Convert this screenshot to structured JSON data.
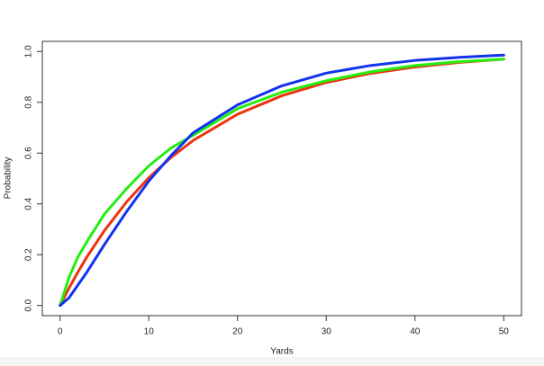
{
  "chart_data": {
    "type": "line",
    "x_label": "Yards",
    "y_label": "Probability",
    "x": [
      0,
      1,
      2,
      3,
      5,
      7.5,
      10,
      12.5,
      15,
      20,
      25,
      30,
      35,
      40,
      45,
      50
    ],
    "series": [
      {
        "color": "#ee3311",
        "values": [
          0,
          0.068,
          0.131,
          0.19,
          0.295,
          0.408,
          0.503,
          0.583,
          0.65,
          0.753,
          0.826,
          0.878,
          0.914,
          0.939,
          0.957,
          0.97
        ]
      },
      {
        "color": "#22ee11",
        "values": [
          0,
          0.11,
          0.19,
          0.25,
          0.36,
          0.46,
          0.55,
          0.62,
          0.67,
          0.775,
          0.84,
          0.885,
          0.92,
          0.945,
          0.96,
          0.97
        ]
      },
      {
        "color": "#1133ee",
        "values": [
          0,
          0.03,
          0.08,
          0.13,
          0.24,
          0.37,
          0.49,
          0.59,
          0.68,
          0.79,
          0.865,
          0.915,
          0.945,
          0.965,
          0.977,
          0.986
        ]
      }
    ],
    "xlim": [
      -2,
      52
    ],
    "xticks": [
      0,
      10,
      20,
      30,
      40,
      50
    ],
    "ylim": [
      -0.04,
      1.04
    ],
    "yticks": [
      {
        "value": 0,
        "label": "0.0"
      },
      0.2,
      0.4,
      0.6,
      0.8,
      {
        "value": 1,
        "label": "1.0"
      }
    ],
    "grid": false
  }
}
